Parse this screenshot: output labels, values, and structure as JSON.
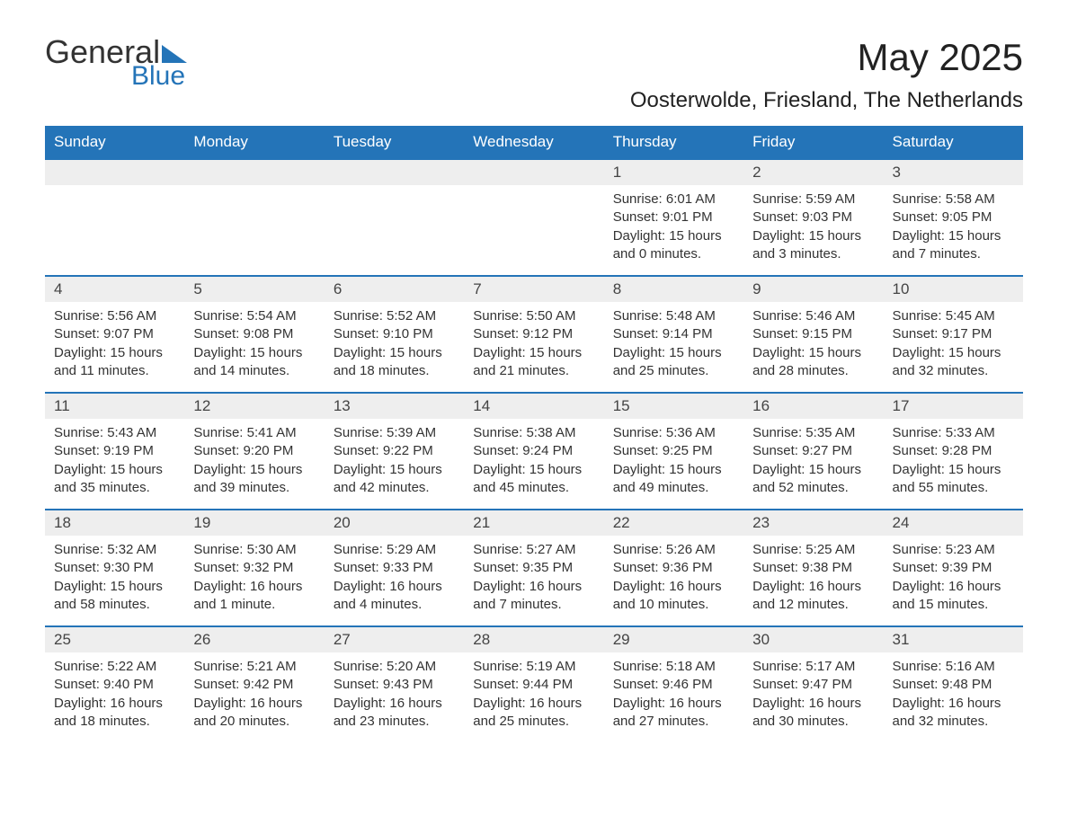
{
  "logo": {
    "text_general": "General",
    "text_blue": "Blue"
  },
  "header": {
    "month_title": "May 2025",
    "location": "Oosterwolde, Friesland, The Netherlands"
  },
  "colors": {
    "brand_blue": "#2474b8",
    "header_text": "#ffffff",
    "daynum_bg": "#eeeeee",
    "body_text": "#333333",
    "background": "#ffffff"
  },
  "typography": {
    "month_title_fontsize": 42,
    "location_fontsize": 24,
    "dayheader_fontsize": 17,
    "daynum_fontsize": 17,
    "body_fontsize": 15
  },
  "calendar": {
    "day_headers": [
      "Sunday",
      "Monday",
      "Tuesday",
      "Wednesday",
      "Thursday",
      "Friday",
      "Saturday"
    ],
    "weeks": [
      [
        null,
        null,
        null,
        null,
        {
          "n": "1",
          "sunrise": "Sunrise: 6:01 AM",
          "sunset": "Sunset: 9:01 PM",
          "daylight": "Daylight: 15 hours and 0 minutes."
        },
        {
          "n": "2",
          "sunrise": "Sunrise: 5:59 AM",
          "sunset": "Sunset: 9:03 PM",
          "daylight": "Daylight: 15 hours and 3 minutes."
        },
        {
          "n": "3",
          "sunrise": "Sunrise: 5:58 AM",
          "sunset": "Sunset: 9:05 PM",
          "daylight": "Daylight: 15 hours and 7 minutes."
        }
      ],
      [
        {
          "n": "4",
          "sunrise": "Sunrise: 5:56 AM",
          "sunset": "Sunset: 9:07 PM",
          "daylight": "Daylight: 15 hours and 11 minutes."
        },
        {
          "n": "5",
          "sunrise": "Sunrise: 5:54 AM",
          "sunset": "Sunset: 9:08 PM",
          "daylight": "Daylight: 15 hours and 14 minutes."
        },
        {
          "n": "6",
          "sunrise": "Sunrise: 5:52 AM",
          "sunset": "Sunset: 9:10 PM",
          "daylight": "Daylight: 15 hours and 18 minutes."
        },
        {
          "n": "7",
          "sunrise": "Sunrise: 5:50 AM",
          "sunset": "Sunset: 9:12 PM",
          "daylight": "Daylight: 15 hours and 21 minutes."
        },
        {
          "n": "8",
          "sunrise": "Sunrise: 5:48 AM",
          "sunset": "Sunset: 9:14 PM",
          "daylight": "Daylight: 15 hours and 25 minutes."
        },
        {
          "n": "9",
          "sunrise": "Sunrise: 5:46 AM",
          "sunset": "Sunset: 9:15 PM",
          "daylight": "Daylight: 15 hours and 28 minutes."
        },
        {
          "n": "10",
          "sunrise": "Sunrise: 5:45 AM",
          "sunset": "Sunset: 9:17 PM",
          "daylight": "Daylight: 15 hours and 32 minutes."
        }
      ],
      [
        {
          "n": "11",
          "sunrise": "Sunrise: 5:43 AM",
          "sunset": "Sunset: 9:19 PM",
          "daylight": "Daylight: 15 hours and 35 minutes."
        },
        {
          "n": "12",
          "sunrise": "Sunrise: 5:41 AM",
          "sunset": "Sunset: 9:20 PM",
          "daylight": "Daylight: 15 hours and 39 minutes."
        },
        {
          "n": "13",
          "sunrise": "Sunrise: 5:39 AM",
          "sunset": "Sunset: 9:22 PM",
          "daylight": "Daylight: 15 hours and 42 minutes."
        },
        {
          "n": "14",
          "sunrise": "Sunrise: 5:38 AM",
          "sunset": "Sunset: 9:24 PM",
          "daylight": "Daylight: 15 hours and 45 minutes."
        },
        {
          "n": "15",
          "sunrise": "Sunrise: 5:36 AM",
          "sunset": "Sunset: 9:25 PM",
          "daylight": "Daylight: 15 hours and 49 minutes."
        },
        {
          "n": "16",
          "sunrise": "Sunrise: 5:35 AM",
          "sunset": "Sunset: 9:27 PM",
          "daylight": "Daylight: 15 hours and 52 minutes."
        },
        {
          "n": "17",
          "sunrise": "Sunrise: 5:33 AM",
          "sunset": "Sunset: 9:28 PM",
          "daylight": "Daylight: 15 hours and 55 minutes."
        }
      ],
      [
        {
          "n": "18",
          "sunrise": "Sunrise: 5:32 AM",
          "sunset": "Sunset: 9:30 PM",
          "daylight": "Daylight: 15 hours and 58 minutes."
        },
        {
          "n": "19",
          "sunrise": "Sunrise: 5:30 AM",
          "sunset": "Sunset: 9:32 PM",
          "daylight": "Daylight: 16 hours and 1 minute."
        },
        {
          "n": "20",
          "sunrise": "Sunrise: 5:29 AM",
          "sunset": "Sunset: 9:33 PM",
          "daylight": "Daylight: 16 hours and 4 minutes."
        },
        {
          "n": "21",
          "sunrise": "Sunrise: 5:27 AM",
          "sunset": "Sunset: 9:35 PM",
          "daylight": "Daylight: 16 hours and 7 minutes."
        },
        {
          "n": "22",
          "sunrise": "Sunrise: 5:26 AM",
          "sunset": "Sunset: 9:36 PM",
          "daylight": "Daylight: 16 hours and 10 minutes."
        },
        {
          "n": "23",
          "sunrise": "Sunrise: 5:25 AM",
          "sunset": "Sunset: 9:38 PM",
          "daylight": "Daylight: 16 hours and 12 minutes."
        },
        {
          "n": "24",
          "sunrise": "Sunrise: 5:23 AM",
          "sunset": "Sunset: 9:39 PM",
          "daylight": "Daylight: 16 hours and 15 minutes."
        }
      ],
      [
        {
          "n": "25",
          "sunrise": "Sunrise: 5:22 AM",
          "sunset": "Sunset: 9:40 PM",
          "daylight": "Daylight: 16 hours and 18 minutes."
        },
        {
          "n": "26",
          "sunrise": "Sunrise: 5:21 AM",
          "sunset": "Sunset: 9:42 PM",
          "daylight": "Daylight: 16 hours and 20 minutes."
        },
        {
          "n": "27",
          "sunrise": "Sunrise: 5:20 AM",
          "sunset": "Sunset: 9:43 PM",
          "daylight": "Daylight: 16 hours and 23 minutes."
        },
        {
          "n": "28",
          "sunrise": "Sunrise: 5:19 AM",
          "sunset": "Sunset: 9:44 PM",
          "daylight": "Daylight: 16 hours and 25 minutes."
        },
        {
          "n": "29",
          "sunrise": "Sunrise: 5:18 AM",
          "sunset": "Sunset: 9:46 PM",
          "daylight": "Daylight: 16 hours and 27 minutes."
        },
        {
          "n": "30",
          "sunrise": "Sunrise: 5:17 AM",
          "sunset": "Sunset: 9:47 PM",
          "daylight": "Daylight: 16 hours and 30 minutes."
        },
        {
          "n": "31",
          "sunrise": "Sunrise: 5:16 AM",
          "sunset": "Sunset: 9:48 PM",
          "daylight": "Daylight: 16 hours and 32 minutes."
        }
      ]
    ]
  }
}
